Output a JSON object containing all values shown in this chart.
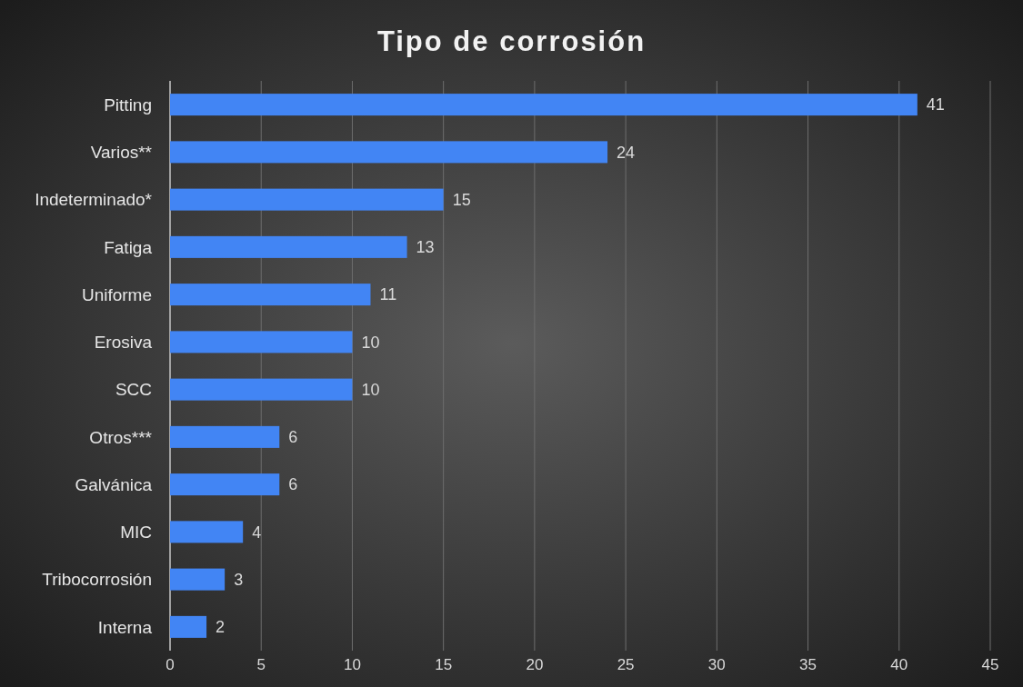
{
  "chart_data": {
    "type": "bar",
    "orientation": "horizontal",
    "title": "Tipo de corrosión",
    "categories": [
      "Pitting",
      "Varios**",
      "Indeterminado*",
      "Fatiga",
      "Uniforme",
      "Erosiva",
      "SCC",
      "Otros***",
      "Galvánica",
      "MIC",
      "Tribocorrosión",
      "Interna"
    ],
    "values": [
      41,
      24,
      15,
      13,
      11,
      10,
      10,
      6,
      6,
      4,
      3,
      2
    ],
    "color": "#4285f4",
    "xlim": [
      0,
      45
    ],
    "xticks": [
      0,
      5,
      10,
      15,
      20,
      25,
      30,
      35,
      40,
      45
    ],
    "grid": "x",
    "data_labels": true
  }
}
